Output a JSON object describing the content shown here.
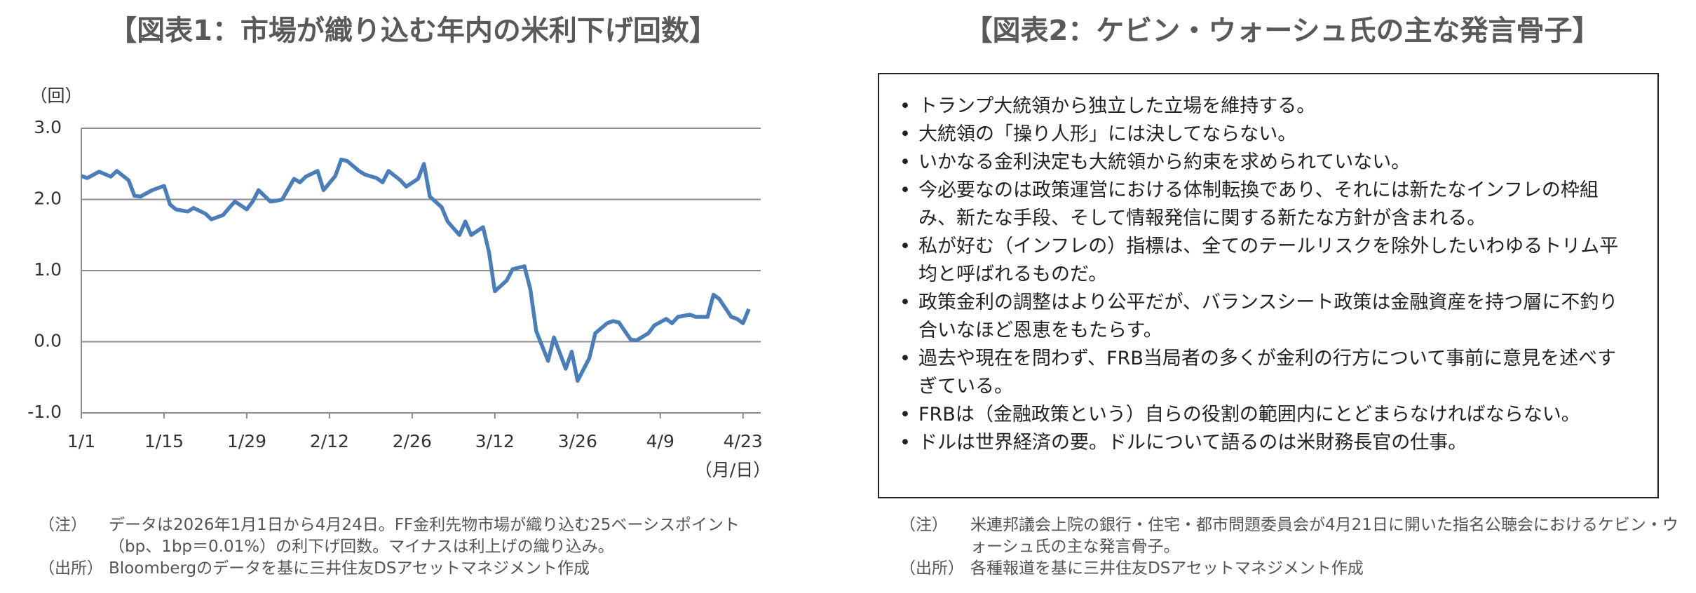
{
  "chart_data": {
    "type": "line",
    "title": "【図表1：市場が織り込む年内の米利下げ回数】",
    "y_label": "（回）",
    "x_label": "（月/日）",
    "color": "#4a7ebb",
    "grid": true,
    "x": [
      "1/1",
      "1/2",
      "1/4",
      "1/6",
      "1/7",
      "1/9",
      "1/10",
      "1/11",
      "1/13",
      "1/15",
      "1/16",
      "1/17",
      "1/19",
      "1/20",
      "1/22",
      "1/23",
      "1/25",
      "1/26",
      "1/27",
      "1/29",
      "1/30",
      "1/31",
      "2/2",
      "2/3",
      "2/4",
      "2/6",
      "2/7",
      "2/8",
      "2/10",
      "2/11",
      "2/13",
      "2/14",
      "2/15",
      "2/17",
      "2/18",
      "2/20",
      "2/21",
      "2/22",
      "2/24",
      "2/25",
      "2/27",
      "2/28",
      "3/1",
      "3/3",
      "3/4",
      "3/6",
      "3/7",
      "3/8",
      "3/10",
      "3/11",
      "3/12",
      "3/14",
      "3/15",
      "3/17",
      "3/18",
      "3/19",
      "3/21",
      "3/22",
      "3/24",
      "3/25",
      "3/26",
      "3/28",
      "3/29",
      "3/31",
      "4/1",
      "4/2",
      "4/4",
      "4/5",
      "4/7",
      "4/8",
      "4/10",
      "4/11",
      "4/12",
      "4/14",
      "4/15",
      "4/17",
      "4/18",
      "4/19",
      "4/21",
      "4/22",
      "4/23",
      "4/24"
    ],
    "values": [
      2.33,
      2.3,
      2.39,
      2.32,
      2.4,
      2.27,
      2.05,
      2.04,
      2.13,
      2.19,
      1.93,
      1.86,
      1.83,
      1.88,
      1.8,
      1.72,
      1.78,
      1.88,
      1.97,
      1.86,
      1.97,
      2.13,
      1.97,
      1.98,
      2.0,
      2.29,
      2.24,
      2.32,
      2.4,
      2.13,
      2.33,
      2.56,
      2.54,
      2.4,
      2.35,
      2.3,
      2.24,
      2.4,
      2.27,
      2.18,
      2.29,
      2.5,
      2.04,
      1.89,
      1.69,
      1.5,
      1.69,
      1.5,
      1.61,
      1.26,
      0.71,
      0.86,
      1.02,
      1.06,
      0.74,
      0.15,
      -0.27,
      0.06,
      -0.38,
      -0.14,
      -0.55,
      -0.23,
      0.12,
      0.26,
      0.29,
      0.27,
      0.03,
      0.02,
      0.12,
      0.23,
      0.32,
      0.26,
      0.35,
      0.38,
      0.35,
      0.35,
      0.66,
      0.6,
      0.35,
      0.32,
      0.26,
      0.46
    ],
    "xlim": [
      "1/1",
      "4/26"
    ],
    "xticks": [
      "1/1",
      "1/15",
      "1/29",
      "2/12",
      "2/26",
      "3/12",
      "3/26",
      "4/9",
      "4/23"
    ],
    "ylim": [
      -1,
      3
    ],
    "yticks": [
      {
        "value": 3,
        "label": "3.0"
      },
      {
        "value": 2,
        "label": "2.0"
      },
      {
        "value": 1,
        "label": "1.0"
      },
      {
        "value": 0,
        "label": "0.0"
      },
      {
        "value": -1,
        "label": "-1.0"
      }
    ],
    "notes": [
      {
        "label": "（注）",
        "text": "データは2026年1月1日から4月24日。FF金利先物市場が織り込む25ベーシスポイント（bp、1bp＝0.01%）の利下げ回数。マイナスは利上げの織り込み。"
      },
      {
        "label": "（出所）",
        "text": "Bloombergのデータを基に三井住友DSアセットマネジメント作成"
      }
    ]
  },
  "panel2": {
    "title": "【図表2：ケビン・ウォーシュ氏の主な発言骨子】",
    "bullets": [
      "トランプ大統領から独立した立場を維持する。",
      "大統領の「操り人形」には決してならない。",
      "いかなる金利決定も大統領から約束を求められていない。",
      "今必要なのは政策運営における体制転換であり、それには新たなインフレの枠組み、新たな手段、そして情報発信に関する新たな方針が含まれる。",
      "私が好む（インフレの）指標は、全てのテールリスクを除外したいわゆるトリム平均と呼ばれるものだ。",
      "政策金利の調整はより公平だが、バランスシート政策は金融資産を持つ層に不釣り合いなほど恩恵をもたらす。",
      "過去や現在を問わず、FRB当局者の多くが金利の行方について事前に意見を述べすぎている。",
      "FRBは（金融政策という）自らの役割の範囲内にとどまらなければならない。",
      "ドルは世界経済の要。ドルについて語るのは米財務長官の仕事。"
    ],
    "notes": [
      {
        "label": "（注）",
        "text": "米連邦議会上院の銀行・住宅・都市問題委員会が4月21日に開いた指名公聴会におけるケビン・ウォーシュ氏の主な発言骨子。"
      },
      {
        "label": "（出所）",
        "text": "各種報道を基に三井住友DSアセットマネジメント作成"
      }
    ]
  }
}
